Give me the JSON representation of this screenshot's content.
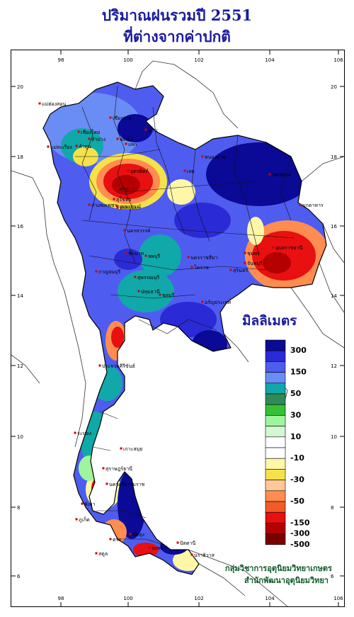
{
  "title_line1": "ปริมาณฝนรวมปี  2551",
  "title_line2": "ที่ต่างจากค่าปกติ",
  "legend": {
    "title": "มิลลิเมตร",
    "classes": [
      {
        "color": "#0a0a96",
        "label": "300"
      },
      {
        "color": "#2a2ad6",
        "label": ""
      },
      {
        "color": "#4f5cf0",
        "label": "150"
      },
      {
        "color": "#6a8cf5",
        "label": ""
      },
      {
        "color": "#10a8a8",
        "label": "50"
      },
      {
        "color": "#2e8b57",
        "label": ""
      },
      {
        "color": "#35c035",
        "label": "30"
      },
      {
        "color": "#9ef59e",
        "label": ""
      },
      {
        "color": "#d2f7d2",
        "label": "10"
      },
      {
        "color": "#ffffff",
        "label": ""
      },
      {
        "color": "#ffffff",
        "label": "-10"
      },
      {
        "color": "#fff7a8",
        "label": ""
      },
      {
        "color": "#f5e14a",
        "label": "-30"
      },
      {
        "color": "#ffc898",
        "label": ""
      },
      {
        "color": "#ff8c50",
        "label": "-50"
      },
      {
        "color": "#f25a28",
        "label": ""
      },
      {
        "color": "#e81010",
        "label": "-150"
      },
      {
        "color": "#b40000",
        "label": "-300"
      },
      {
        "color": "#7a0000",
        "label": "-500"
      }
    ]
  },
  "axes": {
    "longitudes": [
      "98",
      "100",
      "102",
      "104",
      "106"
    ],
    "latitudes": [
      "20",
      "18",
      "16",
      "14",
      "12",
      "10",
      "8",
      "6"
    ]
  },
  "places": [
    {
      "name": "เชียงราย"
    },
    {
      "name": "แม่ฮ่องสอน"
    },
    {
      "name": "เชียงใหม่"
    },
    {
      "name": "ลำพูน"
    },
    {
      "name": "ลำปาง"
    },
    {
      "name": "พะเยา"
    },
    {
      "name": "น่าน"
    },
    {
      "name": "แพร่"
    },
    {
      "name": "แม่สะเรียง"
    },
    {
      "name": "ตาก"
    },
    {
      "name": "สุโขทัย"
    },
    {
      "name": "อุตรดิตถ์"
    },
    {
      "name": "เลย"
    },
    {
      "name": "หนองคาย"
    },
    {
      "name": "นครพนม"
    },
    {
      "name": "มุกดาหาร"
    },
    {
      "name": "พิษณุโลก"
    },
    {
      "name": "เพชรบูรณ์"
    },
    {
      "name": "กำแพงเพชร"
    },
    {
      "name": "นครสวรรค์"
    },
    {
      "name": "อุบลราชธานี"
    },
    {
      "name": "ลพบุรี"
    },
    {
      "name": "ชัยนาท"
    },
    {
      "name": "นครราชสีมา"
    },
    {
      "name": "โคราช"
    },
    {
      "name": "สุรินทร์"
    },
    {
      "name": "ชุมพร"
    },
    {
      "name": "สุพรรณบุรี"
    },
    {
      "name": "กาญจนบุรี"
    },
    {
      "name": "ปทุมธานี"
    },
    {
      "name": "อรัญประเทศ"
    },
    {
      "name": "ประจวบคีรีขันธ์"
    },
    {
      "name": "ระนอง"
    },
    {
      "name": "เกาะสมุย"
    },
    {
      "name": "สุราษฎร์ธานี"
    },
    {
      "name": "พังงา"
    },
    {
      "name": "ภูเก็ต"
    },
    {
      "name": "นครศรีธรรมราช"
    },
    {
      "name": "ตรัง"
    },
    {
      "name": "พัทลุง"
    },
    {
      "name": "สงขลา"
    },
    {
      "name": "ปัตตานี"
    },
    {
      "name": "นราธิวาส"
    },
    {
      "name": "สตูล"
    },
    {
      "name": "จันทบุรี"
    },
    {
      "name": "ชลบุรี"
    }
  ],
  "footer_line1": "กลุ่มวิชาการอุตุนิยมวิทยาเกษตร",
  "footer_line2": "สำนักพัฒนาอุตุนิยมวิทยา"
}
